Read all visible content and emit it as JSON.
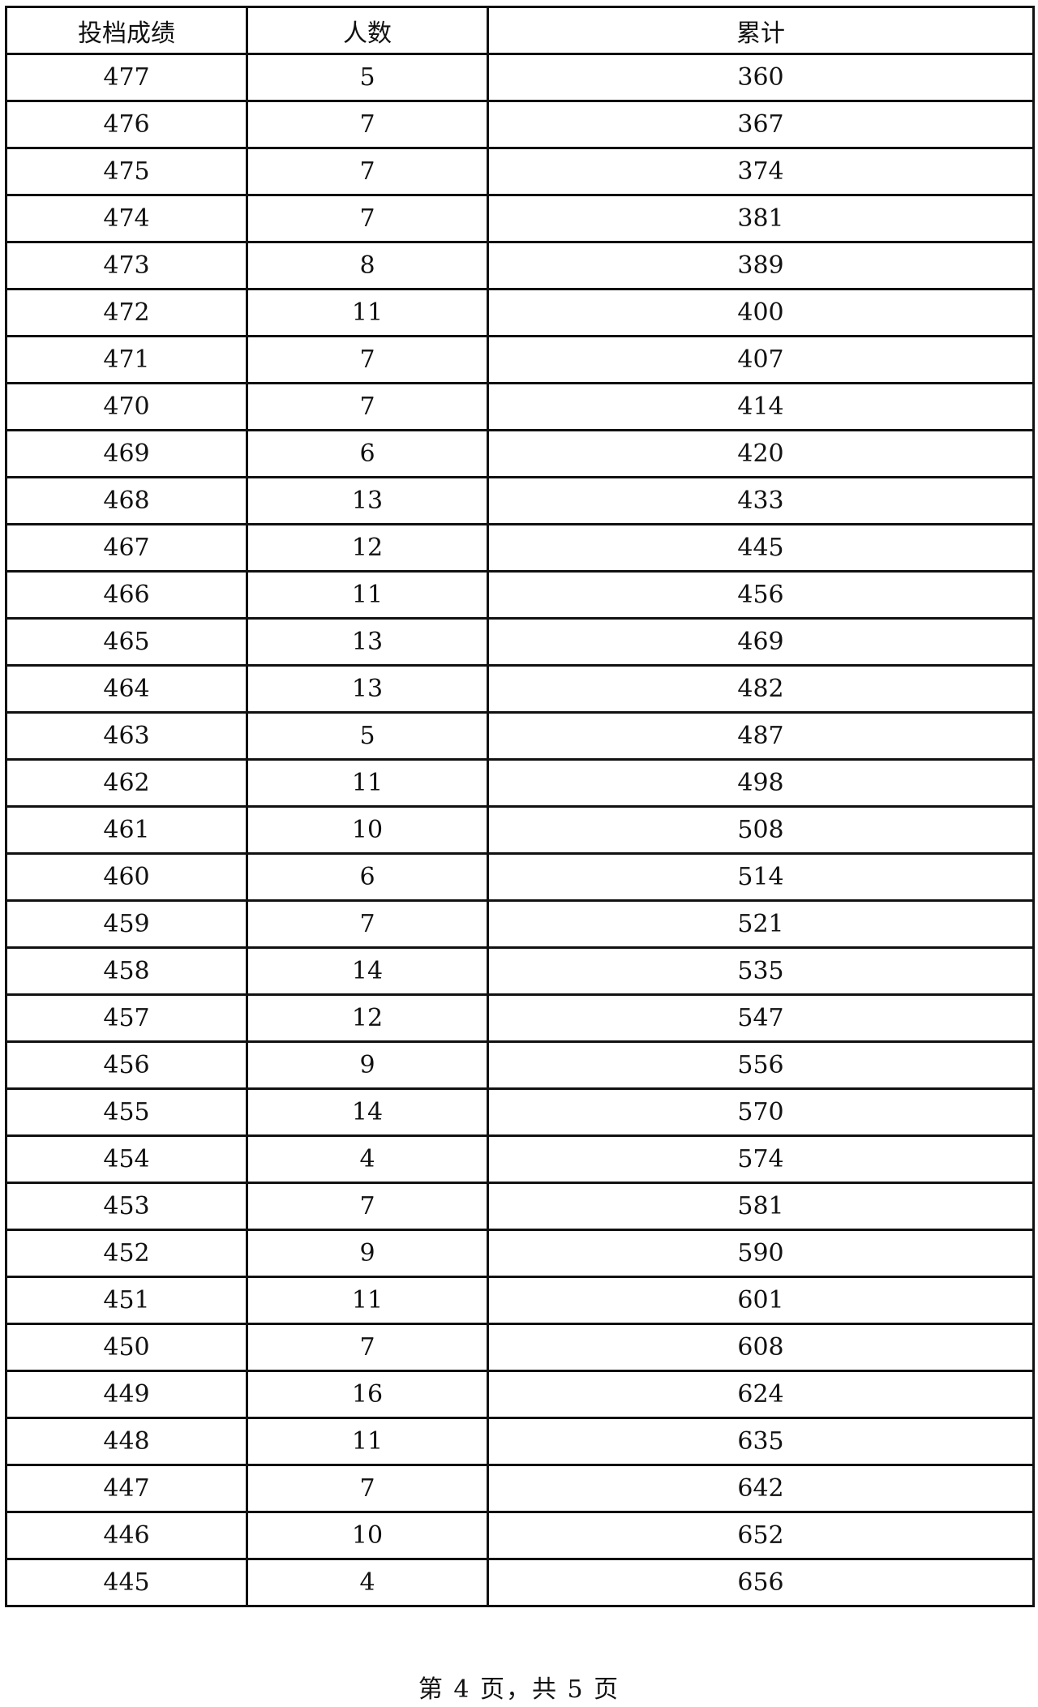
{
  "table": {
    "headers": [
      "投档成绩",
      "人数",
      "累计"
    ],
    "rows": [
      [
        "477",
        "5",
        "360"
      ],
      [
        "476",
        "7",
        "367"
      ],
      [
        "475",
        "7",
        "374"
      ],
      [
        "474",
        "7",
        "381"
      ],
      [
        "473",
        "8",
        "389"
      ],
      [
        "472",
        "11",
        "400"
      ],
      [
        "471",
        "7",
        "407"
      ],
      [
        "470",
        "7",
        "414"
      ],
      [
        "469",
        "6",
        "420"
      ],
      [
        "468",
        "13",
        "433"
      ],
      [
        "467",
        "12",
        "445"
      ],
      [
        "466",
        "11",
        "456"
      ],
      [
        "465",
        "13",
        "469"
      ],
      [
        "464",
        "13",
        "482"
      ],
      [
        "463",
        "5",
        "487"
      ],
      [
        "462",
        "11",
        "498"
      ],
      [
        "461",
        "10",
        "508"
      ],
      [
        "460",
        "6",
        "514"
      ],
      [
        "459",
        "7",
        "521"
      ],
      [
        "458",
        "14",
        "535"
      ],
      [
        "457",
        "12",
        "547"
      ],
      [
        "456",
        "9",
        "556"
      ],
      [
        "455",
        "14",
        "570"
      ],
      [
        "454",
        "4",
        "574"
      ],
      [
        "453",
        "7",
        "581"
      ],
      [
        "452",
        "9",
        "590"
      ],
      [
        "451",
        "11",
        "601"
      ],
      [
        "450",
        "7",
        "608"
      ],
      [
        "449",
        "16",
        "624"
      ],
      [
        "448",
        "11",
        "635"
      ],
      [
        "447",
        "7",
        "642"
      ],
      [
        "446",
        "10",
        "652"
      ],
      [
        "445",
        "4",
        "656"
      ]
    ]
  },
  "footer": {
    "text": "第 4 页，共 5 页"
  }
}
